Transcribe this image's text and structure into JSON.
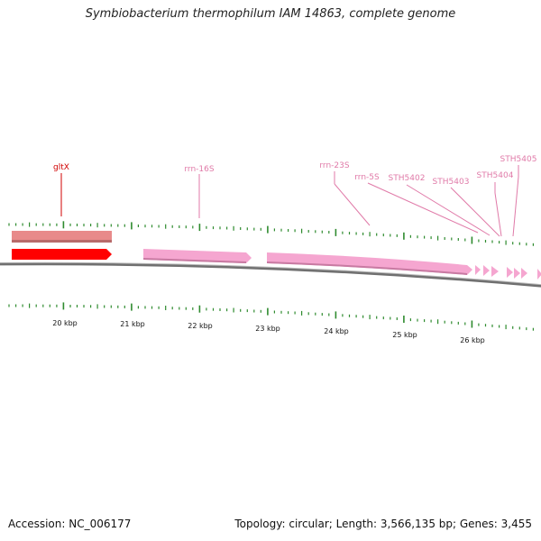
{
  "title": "Symbiobacterium thermophilum IAM 14863, complete genome",
  "footer": {
    "accession": "Accession: NC_006177",
    "topology": "Topology: circular; Length: 3,566,135 bp; Genes: 3,455"
  },
  "colors": {
    "backbone": "#808080",
    "tick": "#2e8b2e",
    "gltX_forward": "#ff0000",
    "gltX_reverse": "#e88a8a",
    "rna_gene": "#f5a6d0",
    "label_red": "#d00000",
    "label_pink": "#e07aa8"
  },
  "genes": [
    {
      "name": "gltX",
      "color": "label_red"
    },
    {
      "name": "rrn-16S",
      "color": "label_pink"
    },
    {
      "name": "rrn-23S",
      "color": "label_pink"
    },
    {
      "name": "rrn-5S",
      "color": "label_pink"
    },
    {
      "name": "STH5402",
      "color": "label_pink"
    },
    {
      "name": "STH5403",
      "color": "label_pink"
    },
    {
      "name": "STH5404",
      "color": "label_pink"
    },
    {
      "name": "STH5405",
      "color": "label_pink"
    }
  ],
  "kbp_labels": [
    "20 kbp",
    "21 kbp",
    "22 kbp",
    "23 kbp",
    "24 kbp",
    "25 kbp",
    "26 kbp"
  ]
}
